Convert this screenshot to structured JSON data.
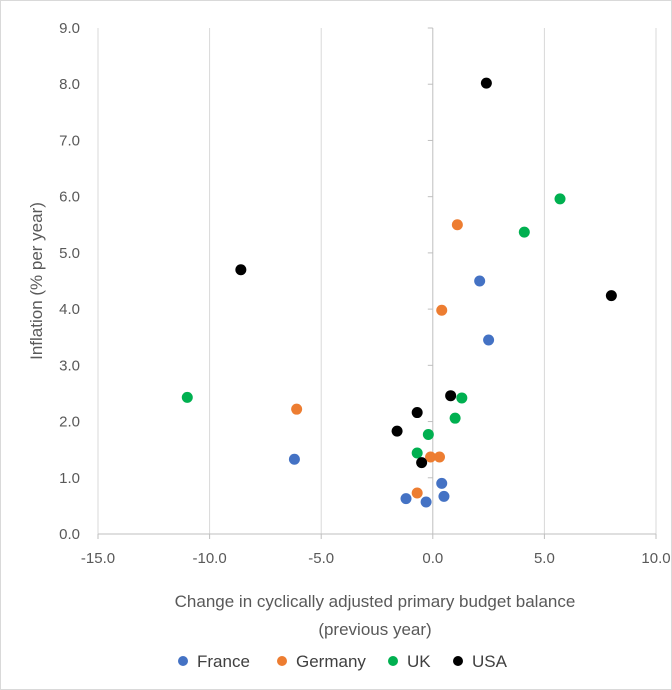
{
  "chart_data": {
    "type": "scatter",
    "title": "",
    "xlabel": [
      "Change in cyclically adjusted primary budget balance",
      "(previous year)"
    ],
    "ylabel": "Inflation (% per year)",
    "xlim": [
      -15,
      10
    ],
    "ylim": [
      0,
      9
    ],
    "x_ticks": [
      "-15.0",
      "-10.0",
      "-5.0",
      "0.0",
      "5.0",
      "10.0"
    ],
    "y_ticks": [
      "0.0",
      "1.0",
      "2.0",
      "3.0",
      "4.0",
      "5.0",
      "6.0",
      "7.0",
      "8.0",
      "9.0"
    ],
    "grid": "vertical",
    "legend_position": "bottom",
    "series": [
      {
        "name": "France",
        "color": "#4472C4",
        "points": [
          {
            "x": -6.2,
            "y": 1.33
          },
          {
            "x": 2.1,
            "y": 4.5
          },
          {
            "x": 2.5,
            "y": 3.45
          },
          {
            "x": 0.4,
            "y": 0.9
          },
          {
            "x": 0.5,
            "y": 0.67
          },
          {
            "x": -1.2,
            "y": 0.63
          },
          {
            "x": -0.3,
            "y": 0.57
          }
        ]
      },
      {
        "name": "Germany",
        "color": "#ED7D31",
        "points": [
          {
            "x": 1.1,
            "y": 5.5
          },
          {
            "x": 0.4,
            "y": 3.98
          },
          {
            "x": -6.1,
            "y": 2.22
          },
          {
            "x": -0.1,
            "y": 1.37
          },
          {
            "x": 0.3,
            "y": 1.37
          },
          {
            "x": -0.7,
            "y": 0.73
          }
        ]
      },
      {
        "name": "UK",
        "color": "#00B050",
        "points": [
          {
            "x": 5.7,
            "y": 5.96
          },
          {
            "x": 4.1,
            "y": 5.37
          },
          {
            "x": -11.0,
            "y": 2.43
          },
          {
            "x": 1.3,
            "y": 2.42
          },
          {
            "x": 1.0,
            "y": 2.06
          },
          {
            "x": -0.2,
            "y": 1.77
          },
          {
            "x": -0.7,
            "y": 1.44
          }
        ]
      },
      {
        "name": "USA",
        "color": "#000000",
        "points": [
          {
            "x": 2.4,
            "y": 8.02
          },
          {
            "x": -8.6,
            "y": 4.7
          },
          {
            "x": 8.0,
            "y": 4.24
          },
          {
            "x": 0.8,
            "y": 2.46
          },
          {
            "x": -0.7,
            "y": 2.16
          },
          {
            "x": -1.6,
            "y": 1.83
          },
          {
            "x": -0.5,
            "y": 1.27
          }
        ]
      }
    ]
  }
}
